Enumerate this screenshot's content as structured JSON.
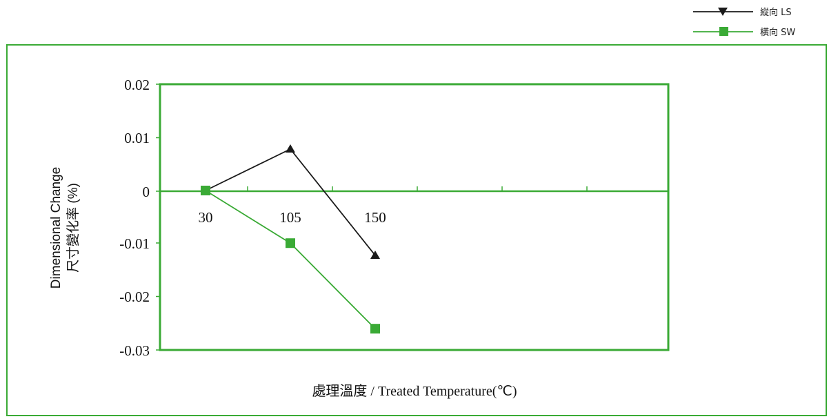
{
  "chart_data": {
    "type": "line",
    "categories": [
      "30",
      "105",
      "150"
    ],
    "series": [
      {
        "name": "縱向 LS",
        "values": [
          0,
          0.0078,
          -0.0122
        ],
        "color": "#1a1a1a",
        "marker": "triangle-down"
      },
      {
        "name": "橫向 SW",
        "values": [
          0,
          -0.0099,
          -0.026
        ],
        "color": "#3aaa35",
        "marker": "square"
      }
    ],
    "title": "",
    "xlabel": "處理溫度 / Treated Temperature(℃)",
    "ylabel_lines": [
      "Dimensional Change",
      "尺寸變化率 (%)"
    ],
    "ylim": [
      -0.03,
      0.02
    ],
    "yticks": [
      "0.02",
      "0.01",
      "0",
      "-0.01",
      "-0.02",
      "-0.03"
    ],
    "grid": false,
    "legend_position": "top-right",
    "frame_color": "#3aaa35"
  }
}
